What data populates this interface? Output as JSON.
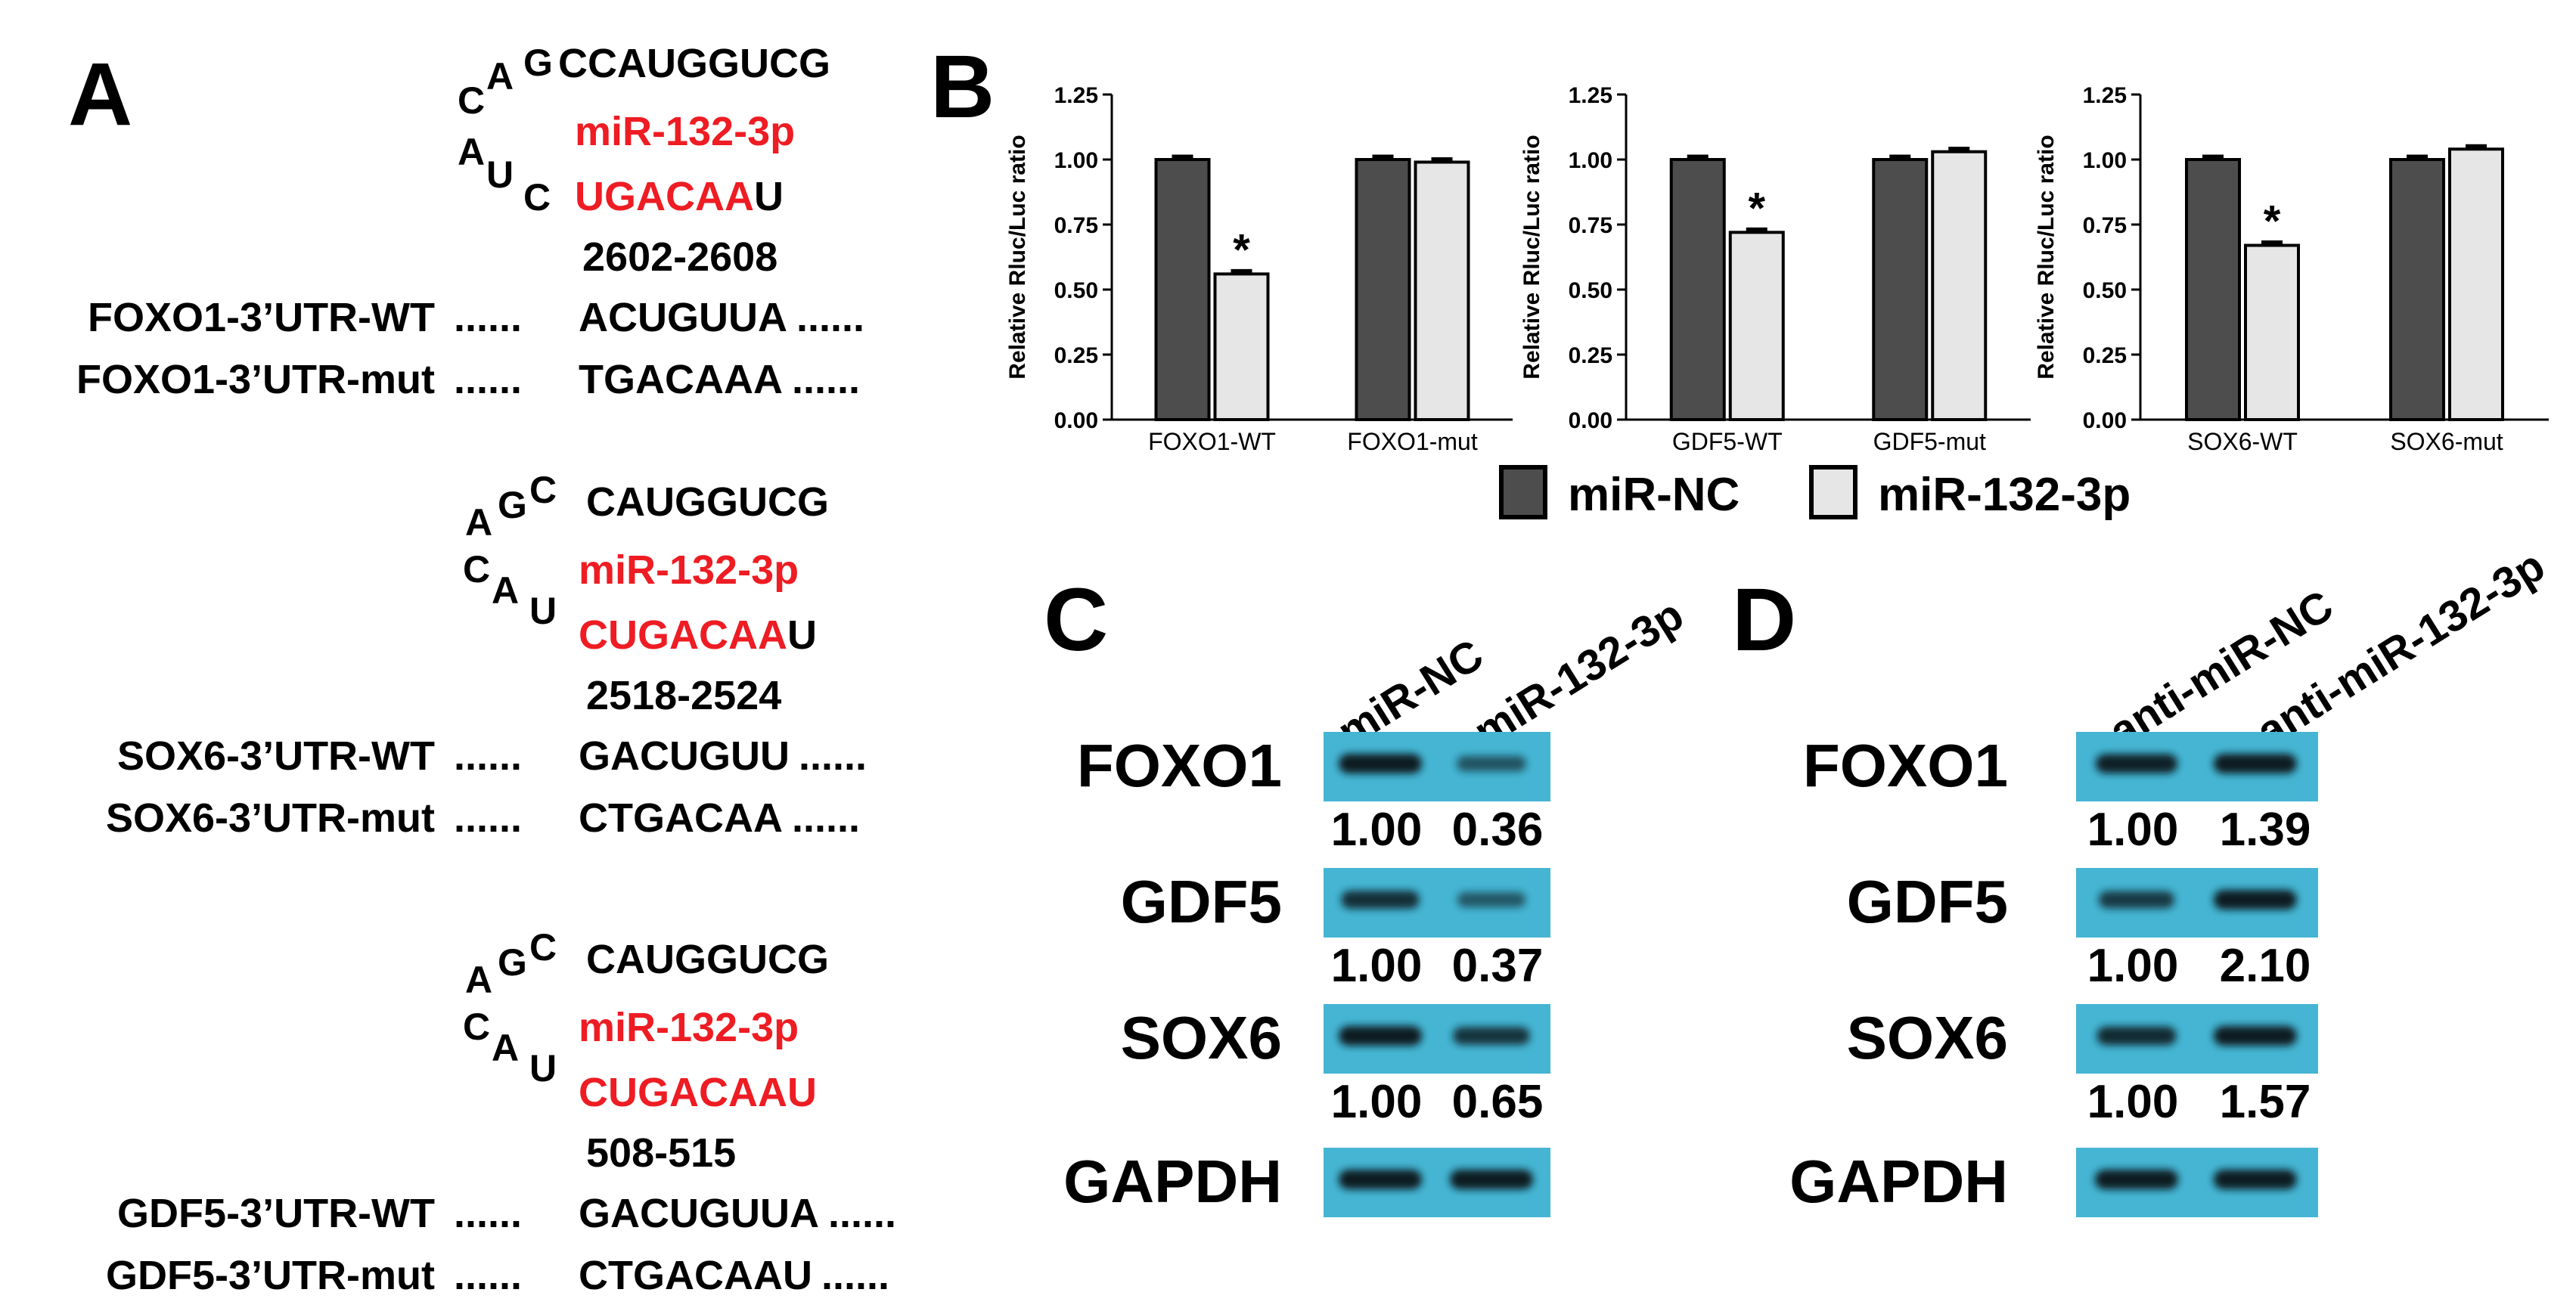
{
  "panel_labels": {
    "a": "A",
    "b": "B",
    "c": "C",
    "d": "D"
  },
  "panel_a": {
    "groups": [
      {
        "loop_letters": [
          "C",
          "A",
          "G",
          "A",
          "U",
          "C"
        ],
        "top_seq": "CCAUGGUCG",
        "mirna": "miR-132-3p",
        "bottom_red": "UGACAA",
        "bottom_black": "U",
        "position": "2602-2608",
        "wt_label": "FOXO1-3’UTR-WT",
        "wt_seq": "ACUGUUA",
        "mut_label": "FOXO1-3’UTR-mut",
        "mut_seq": "TGACAAA"
      },
      {
        "loop_letters": [
          "A",
          "G",
          "C",
          "C",
          "A",
          "U"
        ],
        "top_seq": "CAUGGUCG",
        "mirna": "miR-132-3p",
        "bottom_red": "CUGACAA",
        "bottom_black": "U",
        "position": "2518-2524",
        "wt_label": "SOX6-3’UTR-WT",
        "wt_seq": "GACUGUU",
        "mut_label": "SOX6-3’UTR-mut",
        "mut_seq": "CTGACAA"
      },
      {
        "loop_letters": [
          "A",
          "G",
          "C",
          "C",
          "A",
          "U"
        ],
        "top_seq": "CAUGGUCG",
        "mirna": "miR-132-3p",
        "bottom_red": "CUGACAAU",
        "bottom_black": "",
        "position": "508-515",
        "wt_label": "GDF5-3’UTR-WT",
        "wt_seq": "GACUGUUA",
        "mut_label": "GDF5-3’UTR-mut",
        "mut_seq": "CTGACAAU"
      }
    ],
    "dots": "......"
  },
  "chart_data": [
    {
      "type": "bar",
      "ylabel": "Relative Rluc/Luc ratio",
      "ylim": [
        0,
        1.25
      ],
      "yticks": [
        "0.00",
        "0.25",
        "0.50",
        "0.75",
        "1.00",
        "1.25"
      ],
      "categories": [
        "FOXO1-WT",
        "FOXO1-mut"
      ],
      "series": [
        {
          "name": "miR-NC",
          "values": [
            1.0,
            1.0
          ]
        },
        {
          "name": "miR-132-3p",
          "values": [
            0.56,
            0.99
          ]
        }
      ],
      "annotations": [
        {
          "category": "FOXO1-WT",
          "series": "miR-132-3p",
          "text": "*"
        }
      ]
    },
    {
      "type": "bar",
      "ylabel": "Relative Rluc/Luc ratio",
      "ylim": [
        0,
        1.25
      ],
      "yticks": [
        "0.00",
        "0.25",
        "0.50",
        "0.75",
        "1.00",
        "1.25"
      ],
      "categories": [
        "GDF5-WT",
        "GDF5-mut"
      ],
      "series": [
        {
          "name": "miR-NC",
          "values": [
            1.0,
            1.0
          ]
        },
        {
          "name": "miR-132-3p",
          "values": [
            0.72,
            1.03
          ]
        }
      ],
      "annotations": [
        {
          "category": "GDF5-WT",
          "series": "miR-132-3p",
          "text": "*"
        }
      ]
    },
    {
      "type": "bar",
      "ylabel": "Relative Rluc/Luc ratio",
      "ylim": [
        0,
        1.25
      ],
      "yticks": [
        "0.00",
        "0.25",
        "0.50",
        "0.75",
        "1.00",
        "1.25"
      ],
      "categories": [
        "SOX6-WT",
        "SOX6-mut"
      ],
      "series": [
        {
          "name": "miR-NC",
          "values": [
            1.0,
            1.0
          ]
        },
        {
          "name": "miR-132-3p",
          "values": [
            0.67,
            1.04
          ]
        }
      ],
      "annotations": [
        {
          "category": "SOX6-WT",
          "series": "miR-132-3p",
          "text": "*"
        }
      ]
    }
  ],
  "legend": [
    {
      "name": "miR-NC",
      "color": "#4d4d4d"
    },
    {
      "name": "miR-132-3p",
      "color": "#e6e6e6"
    }
  ],
  "panel_c": {
    "columns": [
      "miR-NC",
      "miR-132-3p"
    ],
    "rows": [
      {
        "protein": "FOXO1",
        "values": [
          "1.00",
          "0.36"
        ],
        "intensity": [
          1.0,
          0.45
        ]
      },
      {
        "protein": "GDF5",
        "values": [
          "1.00",
          "0.37"
        ],
        "intensity": [
          0.8,
          0.4
        ]
      },
      {
        "protein": "SOX6",
        "values": [
          "1.00",
          "0.65"
        ],
        "intensity": [
          1.0,
          0.75
        ]
      },
      {
        "protein": "GAPDH",
        "values": [],
        "intensity": [
          1.0,
          1.0
        ]
      }
    ]
  },
  "panel_d": {
    "columns": [
      "anti-miR-NC",
      "anti-miR-132-3p"
    ],
    "rows": [
      {
        "protein": "FOXO1",
        "values": [
          "1.00",
          "1.39"
        ],
        "intensity": [
          0.95,
          1.0
        ]
      },
      {
        "protein": "GDF5",
        "values": [
          "1.00",
          "2.10"
        ],
        "intensity": [
          0.7,
          1.0
        ]
      },
      {
        "protein": "SOX6",
        "values": [
          "1.00",
          "1.57"
        ],
        "intensity": [
          0.85,
          1.0
        ]
      },
      {
        "protein": "GAPDH",
        "values": [],
        "intensity": [
          1.0,
          1.0
        ]
      }
    ]
  },
  "colors": {
    "red": "#ee1c23",
    "blot": "#45b5d3",
    "dark_bar": "#4d4d4d",
    "light_bar": "#e6e6e6"
  }
}
